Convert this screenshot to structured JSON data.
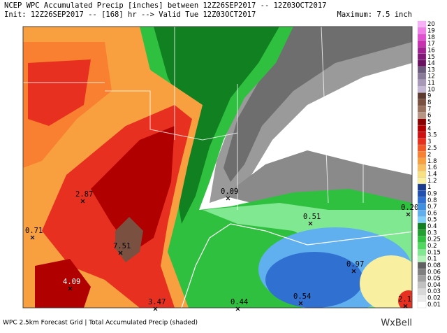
{
  "header": {
    "line1": "NCEP WPC Accumulated Precip [inches] between 12Z26SEP2017 -- 12Z03OCT2017",
    "line2": "Init: 12Z26SEP2017 -- [168] hr --> Valid Tue 12Z03OCT2017",
    "maximum": "Maximum: 7.5 inch"
  },
  "colorbar": [
    {
      "label": "20",
      "color": "#f8b0f8"
    },
    {
      "label": "19",
      "color": "#f080e8"
    },
    {
      "label": "18",
      "color": "#e050d0"
    },
    {
      "label": "17",
      "color": "#c830b0"
    },
    {
      "label": "16",
      "color": "#a02090"
    },
    {
      "label": "15",
      "color": "#801878"
    },
    {
      "label": "14",
      "color": "#6a1060"
    },
    {
      "label": "13",
      "color": "#6c5a7c"
    },
    {
      "label": "12",
      "color": "#8a7a9a"
    },
    {
      "label": "11",
      "color": "#a898b8"
    },
    {
      "label": "10",
      "color": "#c4b8d4"
    },
    {
      "label": "9",
      "color": "#5c3a30"
    },
    {
      "label": "8",
      "color": "#7a5040"
    },
    {
      "label": "7",
      "color": "#98705e"
    },
    {
      "label": "6",
      "color": "#b89484"
    },
    {
      "label": "5",
      "color": "#8a0000"
    },
    {
      "label": "4",
      "color": "#b00000"
    },
    {
      "label": "3.5",
      "color": "#d01010"
    },
    {
      "label": "3",
      "color": "#e83020"
    },
    {
      "label": "2.5",
      "color": "#f05a28"
    },
    {
      "label": "2",
      "color": "#f88030"
    },
    {
      "label": "1.8",
      "color": "#f8a040"
    },
    {
      "label": "1.6",
      "color": "#f8c060"
    },
    {
      "label": "1.4",
      "color": "#f8e080"
    },
    {
      "label": "1.2",
      "color": "#f8f0a0"
    },
    {
      "label": "1",
      "color": "#1a3a90"
    },
    {
      "label": "0.9",
      "color": "#2050b0"
    },
    {
      "label": "0.8",
      "color": "#3070d0"
    },
    {
      "label": "0.7",
      "color": "#4090e0"
    },
    {
      "label": "0.6",
      "color": "#60b0f0"
    },
    {
      "label": "0.5",
      "color": "#80d0f8"
    },
    {
      "label": "0.4",
      "color": "#108020"
    },
    {
      "label": "0.3",
      "color": "#20a030"
    },
    {
      "label": "0.25",
      "color": "#30c040"
    },
    {
      "label": "0.2",
      "color": "#50d860"
    },
    {
      "label": "0.15",
      "color": "#80e890"
    },
    {
      "label": "0.1",
      "color": "#b0f4b8"
    },
    {
      "label": "0.08",
      "color": "#606060"
    },
    {
      "label": "0.06",
      "color": "#808080"
    },
    {
      "label": "0.05",
      "color": "#a0a0a0"
    },
    {
      "label": "0.04",
      "color": "#c0c0c0"
    },
    {
      "label": "0.03",
      "color": "#d8d8d8"
    },
    {
      "label": "0.02",
      "color": "#ececec"
    },
    {
      "label": "0.01",
      "color": "#ffffff"
    }
  ],
  "points": [
    "2.87",
    "0.71",
    "7.51",
    "4.09",
    "3.47",
    "0.44",
    "0.54",
    "0.97",
    "2.1",
    "0.09",
    "0.51",
    "0.20"
  ],
  "footer": {
    "caption": "WPC 2.5km Forecast Grid | Total Accumulated Precip (shaded)",
    "logo": "WxBell"
  }
}
